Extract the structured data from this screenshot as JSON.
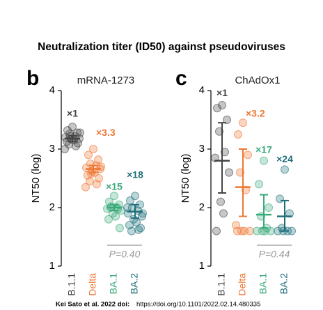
{
  "title": "Neutralization titer (ID50) against pseudoviruses",
  "footer": {
    "author": "Kei Sato et al. 2022 doi:",
    "url": "https://doi.org/10.1101/2022.02.14.480335"
  },
  "chart_data": [
    {
      "type": "strip",
      "panel": "b",
      "title": "mRNA-1273",
      "ylabel": "NT50 (log)",
      "ylim": [
        1,
        4
      ],
      "yticks": [
        1,
        2,
        3,
        4
      ],
      "categories": [
        "B.1.1",
        "Delta",
        "BA.1",
        "BA.2"
      ],
      "series": [
        {
          "color": "#444444",
          "values": [
            3.38,
            3.32,
            3.28,
            3.26,
            3.22,
            3.2,
            3.18,
            3.17,
            3.15,
            3.13,
            3.1,
            3.08,
            3.05,
            3.0,
            3.28,
            3.22
          ],
          "mean": 3.18,
          "ci": [
            3.13,
            3.23
          ],
          "annotation": "×1"
        },
        {
          "color": "#ee7733",
          "values": [
            3.0,
            2.9,
            2.82,
            2.75,
            2.72,
            2.68,
            2.66,
            2.62,
            2.6,
            2.55,
            2.5,
            2.45,
            2.4,
            2.35,
            2.7,
            2.58
          ],
          "mean": 2.66,
          "ci": [
            2.6,
            2.72
          ],
          "annotation": "×3.3"
        },
        {
          "color": "#3aaa7a",
          "values": [
            2.2,
            2.1,
            2.05,
            2.02,
            2.0,
            1.98,
            1.95,
            1.9,
            1.85,
            1.8,
            1.65,
            2.0,
            1.97
          ],
          "mean": 2.0,
          "ci": [
            1.95,
            2.05
          ],
          "annotation": "×15"
        },
        {
          "color": "#1f6f7a",
          "values": [
            2.2,
            2.12,
            2.05,
            2.0,
            1.95,
            1.9,
            1.85,
            1.8,
            1.75,
            1.7,
            1.65,
            1.6,
            1.62,
            2.0,
            1.9
          ],
          "mean": 1.93,
          "ci": [
            1.82,
            2.05
          ],
          "annotation": "×18"
        }
      ],
      "p_value": "P=0.40"
    },
    {
      "type": "strip",
      "panel": "c",
      "title": "ChAdOx1",
      "ylabel": "NT50 (log)",
      "ylim": [
        1,
        4
      ],
      "yticks": [
        1,
        2,
        3,
        4
      ],
      "categories": [
        "B.1.1",
        "Delta",
        "BA.1",
        "BA.2"
      ],
      "series": [
        {
          "color": "#444444",
          "values": [
            3.75,
            3.7,
            3.5,
            3.3,
            2.95,
            2.85,
            2.6,
            2.1,
            1.9,
            1.6
          ],
          "mean": 2.8,
          "ci": [
            2.25,
            3.45
          ],
          "annotation": "×1"
        },
        {
          "color": "#ee7733",
          "values": [
            3.45,
            3.25,
            2.9,
            2.6,
            2.3,
            1.7,
            1.6,
            1.6,
            1.6,
            1.6
          ],
          "mean": 2.35,
          "ci": [
            1.85,
            3.0
          ],
          "annotation": "×3.2"
        },
        {
          "color": "#3aaa7a",
          "values": [
            2.8,
            2.4,
            2.0,
            1.85,
            1.65,
            1.6,
            1.6,
            1.6,
            1.6
          ],
          "mean": 1.88,
          "ci": [
            1.65,
            2.22
          ],
          "annotation": "×17"
        },
        {
          "color": "#1f6f7a",
          "values": [
            2.65,
            2.15,
            1.9,
            1.65,
            1.6,
            1.6,
            1.6,
            1.6
          ],
          "mean": 1.85,
          "ci": [
            1.6,
            2.12
          ],
          "annotation": "×24"
        }
      ],
      "p_value": "P=0.44"
    }
  ]
}
